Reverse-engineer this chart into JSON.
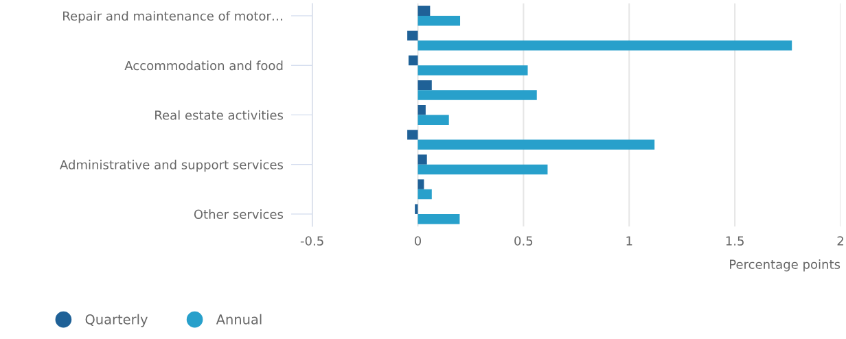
{
  "chart_data": {
    "type": "bar",
    "orientation": "horizontal",
    "categories": [
      "Repair and maintenance of motor…",
      null,
      "Accommodation and food",
      null,
      "Real estate activities",
      null,
      "Administrative and support services",
      null,
      "Other services"
    ],
    "series": [
      {
        "name": "Quarterly",
        "color": "#1f6197",
        "values": [
          0.058,
          -0.05,
          -0.044,
          0.066,
          0.037,
          -0.05,
          0.043,
          0.029,
          -0.014
        ]
      },
      {
        "name": "Annual",
        "color": "#28a0cb",
        "values": [
          0.2,
          1.77,
          0.52,
          0.563,
          0.147,
          1.12,
          0.614,
          0.066,
          0.198
        ]
      }
    ],
    "xlim": [
      -0.5,
      2
    ],
    "xticks": [
      -0.5,
      0,
      0.5,
      1,
      1.5,
      2
    ],
    "xlabel": "Percentage points",
    "grid": "x",
    "legend": "bottom left"
  }
}
